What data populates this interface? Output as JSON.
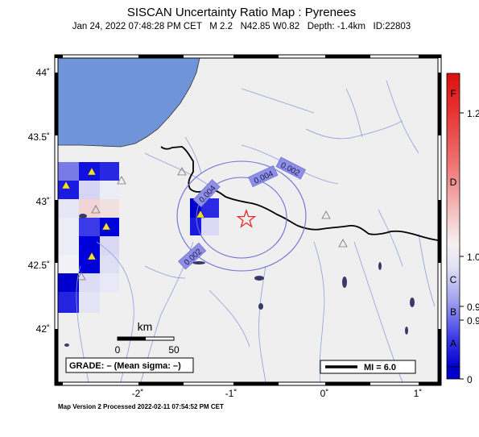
{
  "title": "SISCAN Uncertainty Ratio Map : Pyrenees",
  "subtitle": "Jan 24, 2022 07:48:28 PM CET   M 2.2   N42.85 W0.82   Depth: -1.4km   ID:22803",
  "footer": "Map Version 2 Processed 2022-02-11 07:54:52 PM CET",
  "axes": {
    "lon_ticks": [
      "-2˚",
      "-1˚",
      "0˚",
      "1˚"
    ],
    "lat_ticks": [
      "44˚",
      "43.5˚",
      "43˚",
      "42.5˚",
      "42˚"
    ]
  },
  "contours": [
    "0.002",
    "0.004",
    "0.004",
    "0.002"
  ],
  "scale_bar": {
    "title": "km",
    "min": "0",
    "max": "50"
  },
  "grade_box": "GRADE: – (Mean sigma: –)",
  "mi_legend": "MI = 6.0",
  "colorbar": {
    "letters": [
      "F",
      "D",
      "C",
      "B",
      "A"
    ],
    "values": [
      "1.2",
      "1.0",
      "0.9",
      "0.9",
      "0"
    ]
  },
  "epicenter": {
    "lat": 42.85,
    "lon": -0.82
  },
  "colors": {
    "land": "#efefef",
    "sea": "#6f94d8",
    "border": "#000000",
    "rivers": "#7a96d8",
    "contour": "#6d6fd8",
    "epicenter": "#e8282a",
    "station_active": "#f0e030"
  }
}
